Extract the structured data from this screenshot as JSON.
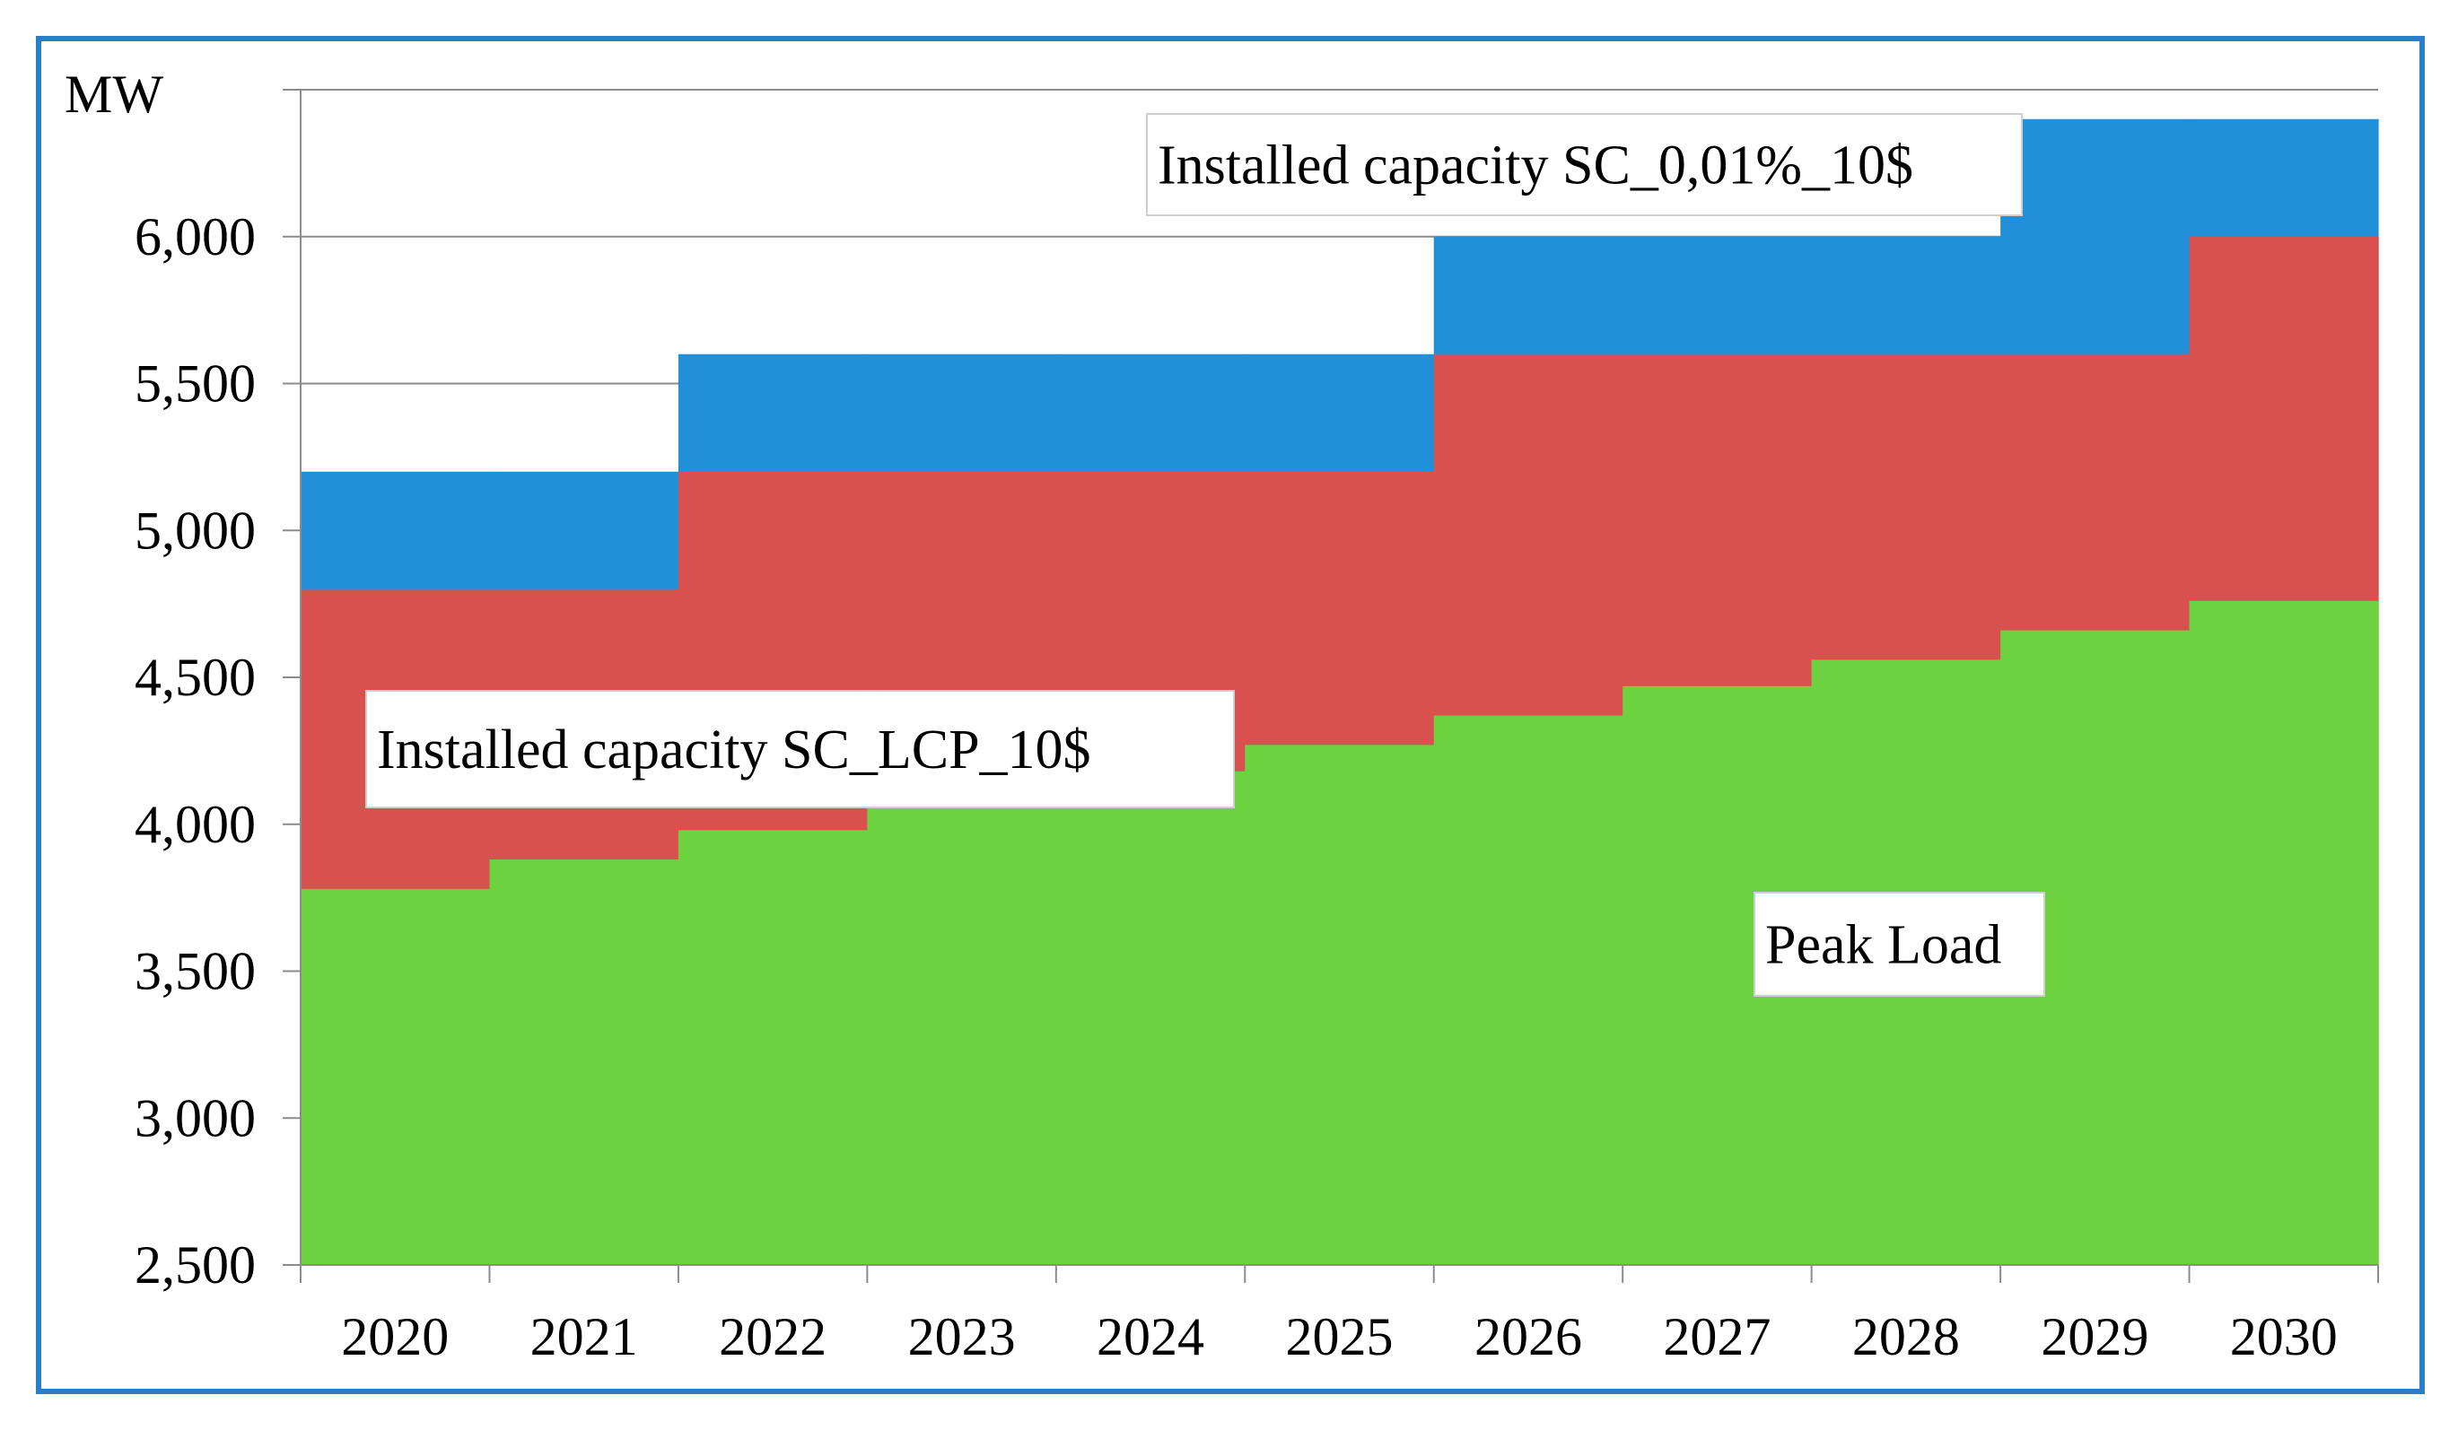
{
  "chart_data": {
    "type": "area",
    "step": true,
    "title": "",
    "xlabel": "",
    "ylabel": "MW",
    "ylim": [
      2500,
      6500
    ],
    "yticks": [
      2500,
      3000,
      3500,
      4000,
      4500,
      5000,
      5500,
      6000
    ],
    "ytick_labels": [
      "2,500",
      "3,000",
      "3,500",
      "4,000",
      "4,500",
      "5,000",
      "5,500",
      "6,000"
    ],
    "categories": [
      "2020",
      "2021",
      "2022",
      "2023",
      "2024",
      "2025",
      "2026",
      "2027",
      "2028",
      "2029",
      "2030"
    ],
    "grid": true,
    "series": [
      {
        "name": "Installed capacity SC_0,01%_10$",
        "color": "#2290d8",
        "values": [
          5200,
          5200,
          5600,
          5600,
          5600,
          5600,
          6000,
          6000,
          6000,
          6400,
          6400
        ]
      },
      {
        "name": "Installed capacity SC_LCP_10$",
        "color": "#d9514e",
        "values": [
          4800,
          4800,
          5200,
          5200,
          5200,
          5200,
          5600,
          5600,
          5600,
          5600,
          6000
        ]
      },
      {
        "name": "Peak Load",
        "color": "#6dd23f",
        "values": [
          3780,
          3880,
          3980,
          4080,
          4180,
          4270,
          4370,
          4470,
          4560,
          4660,
          4760
        ]
      }
    ],
    "annotations": [
      {
        "text": "Installed capacity SC_0,01%_10$",
        "series": 0
      },
      {
        "text": "Installed capacity SC_LCP_10$",
        "series": 1
      },
      {
        "text": "Peak Load",
        "series": 2
      }
    ]
  }
}
